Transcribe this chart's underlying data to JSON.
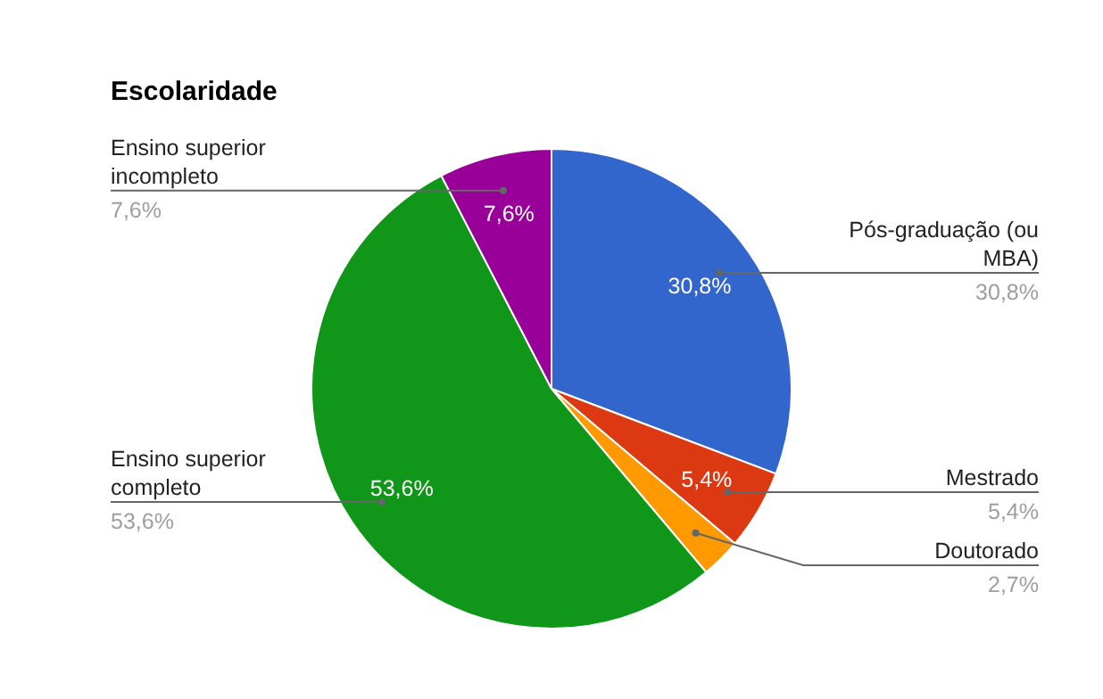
{
  "chart_data": {
    "type": "pie",
    "title": "Escolaridade",
    "categories": [
      "Pós-graduação (ou MBA)",
      "Mestrado",
      "Doutorado",
      "Ensino superior completo",
      "Ensino superior incompleto"
    ],
    "values": [
      30.8,
      5.4,
      2.7,
      53.6,
      7.6
    ],
    "colors": [
      "#3366cc",
      "#dc3912",
      "#ff9900",
      "#109618",
      "#990099"
    ],
    "value_labels": [
      "30,8%",
      "5,4%",
      "2,7%",
      "53,6%",
      "7,6%"
    ],
    "legend": false
  }
}
